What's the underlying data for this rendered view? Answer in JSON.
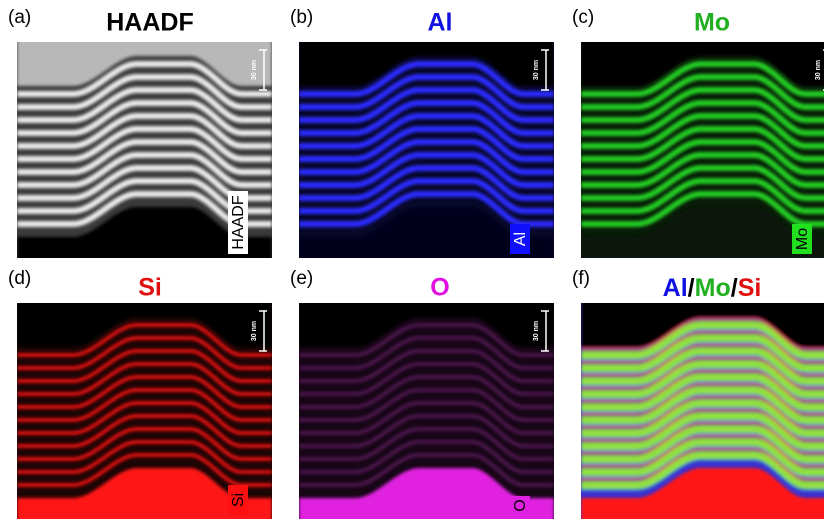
{
  "panels": [
    {
      "label": "(a)",
      "title": "HAADF",
      "scale_bar": "30 nm",
      "tag": "HAADF"
    },
    {
      "label": "(b)",
      "title": "Al",
      "scale_bar": "30 nm",
      "tag": "Al"
    },
    {
      "label": "(c)",
      "title": "Mo",
      "scale_bar": "30 nm",
      "tag": "Mo"
    },
    {
      "label": "(d)",
      "title": "Si",
      "scale_bar": "30 nm",
      "tag": "Si"
    },
    {
      "label": "(e)",
      "title": "O",
      "scale_bar": "30 nm",
      "tag": "O"
    },
    {
      "label": "(f)",
      "title_parts": [
        "Al",
        "/",
        "Mo",
        "/",
        "Si"
      ]
    }
  ]
}
